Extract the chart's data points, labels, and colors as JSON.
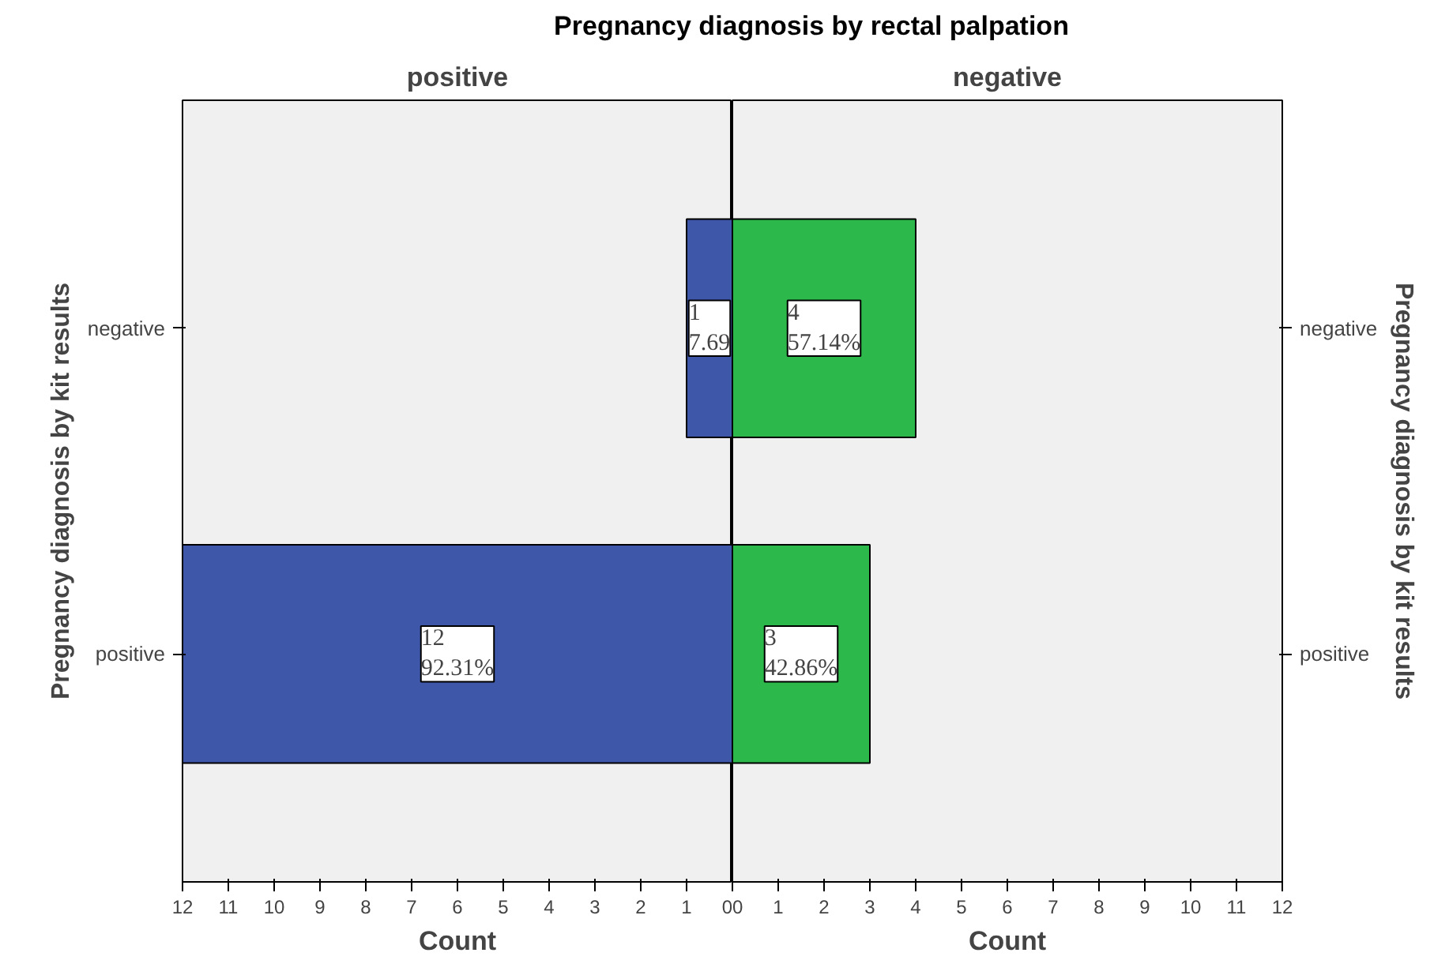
{
  "chart_data": [
    {
      "type": "bar",
      "orientation": "horizontal",
      "title": "Pregnancy diagnosis by rectal palpation",
      "subtitle": "positive",
      "xlabel": "Count",
      "ylabel": "Pregnancy diagnosis by kit results",
      "categories": [
        "negative",
        "positive"
      ],
      "values": [
        1,
        12
      ],
      "color": "#3f57a8",
      "value_labels": [
        "1\n7.69",
        "12\n92.31%"
      ],
      "xlim": [
        12,
        0
      ],
      "xticks": [
        0,
        1,
        2,
        3,
        4,
        5,
        6,
        7,
        8,
        9,
        10,
        11,
        12
      ],
      "grid": false
    },
    {
      "type": "bar",
      "orientation": "horizontal",
      "subtitle": "negative",
      "xlabel": "Count",
      "ylabel": "Pregnancy diagnosis by kit results",
      "categories": [
        "negative",
        "positive"
      ],
      "values": [
        4,
        3
      ],
      "color": "#2db84b",
      "value_labels": [
        "4\n57.14%",
        "3\n42.86%"
      ],
      "xlim": [
        0,
        12
      ],
      "xticks": [
        0,
        1,
        2,
        3,
        4,
        5,
        6,
        7,
        8,
        9,
        10,
        11,
        12
      ],
      "grid": false
    }
  ]
}
